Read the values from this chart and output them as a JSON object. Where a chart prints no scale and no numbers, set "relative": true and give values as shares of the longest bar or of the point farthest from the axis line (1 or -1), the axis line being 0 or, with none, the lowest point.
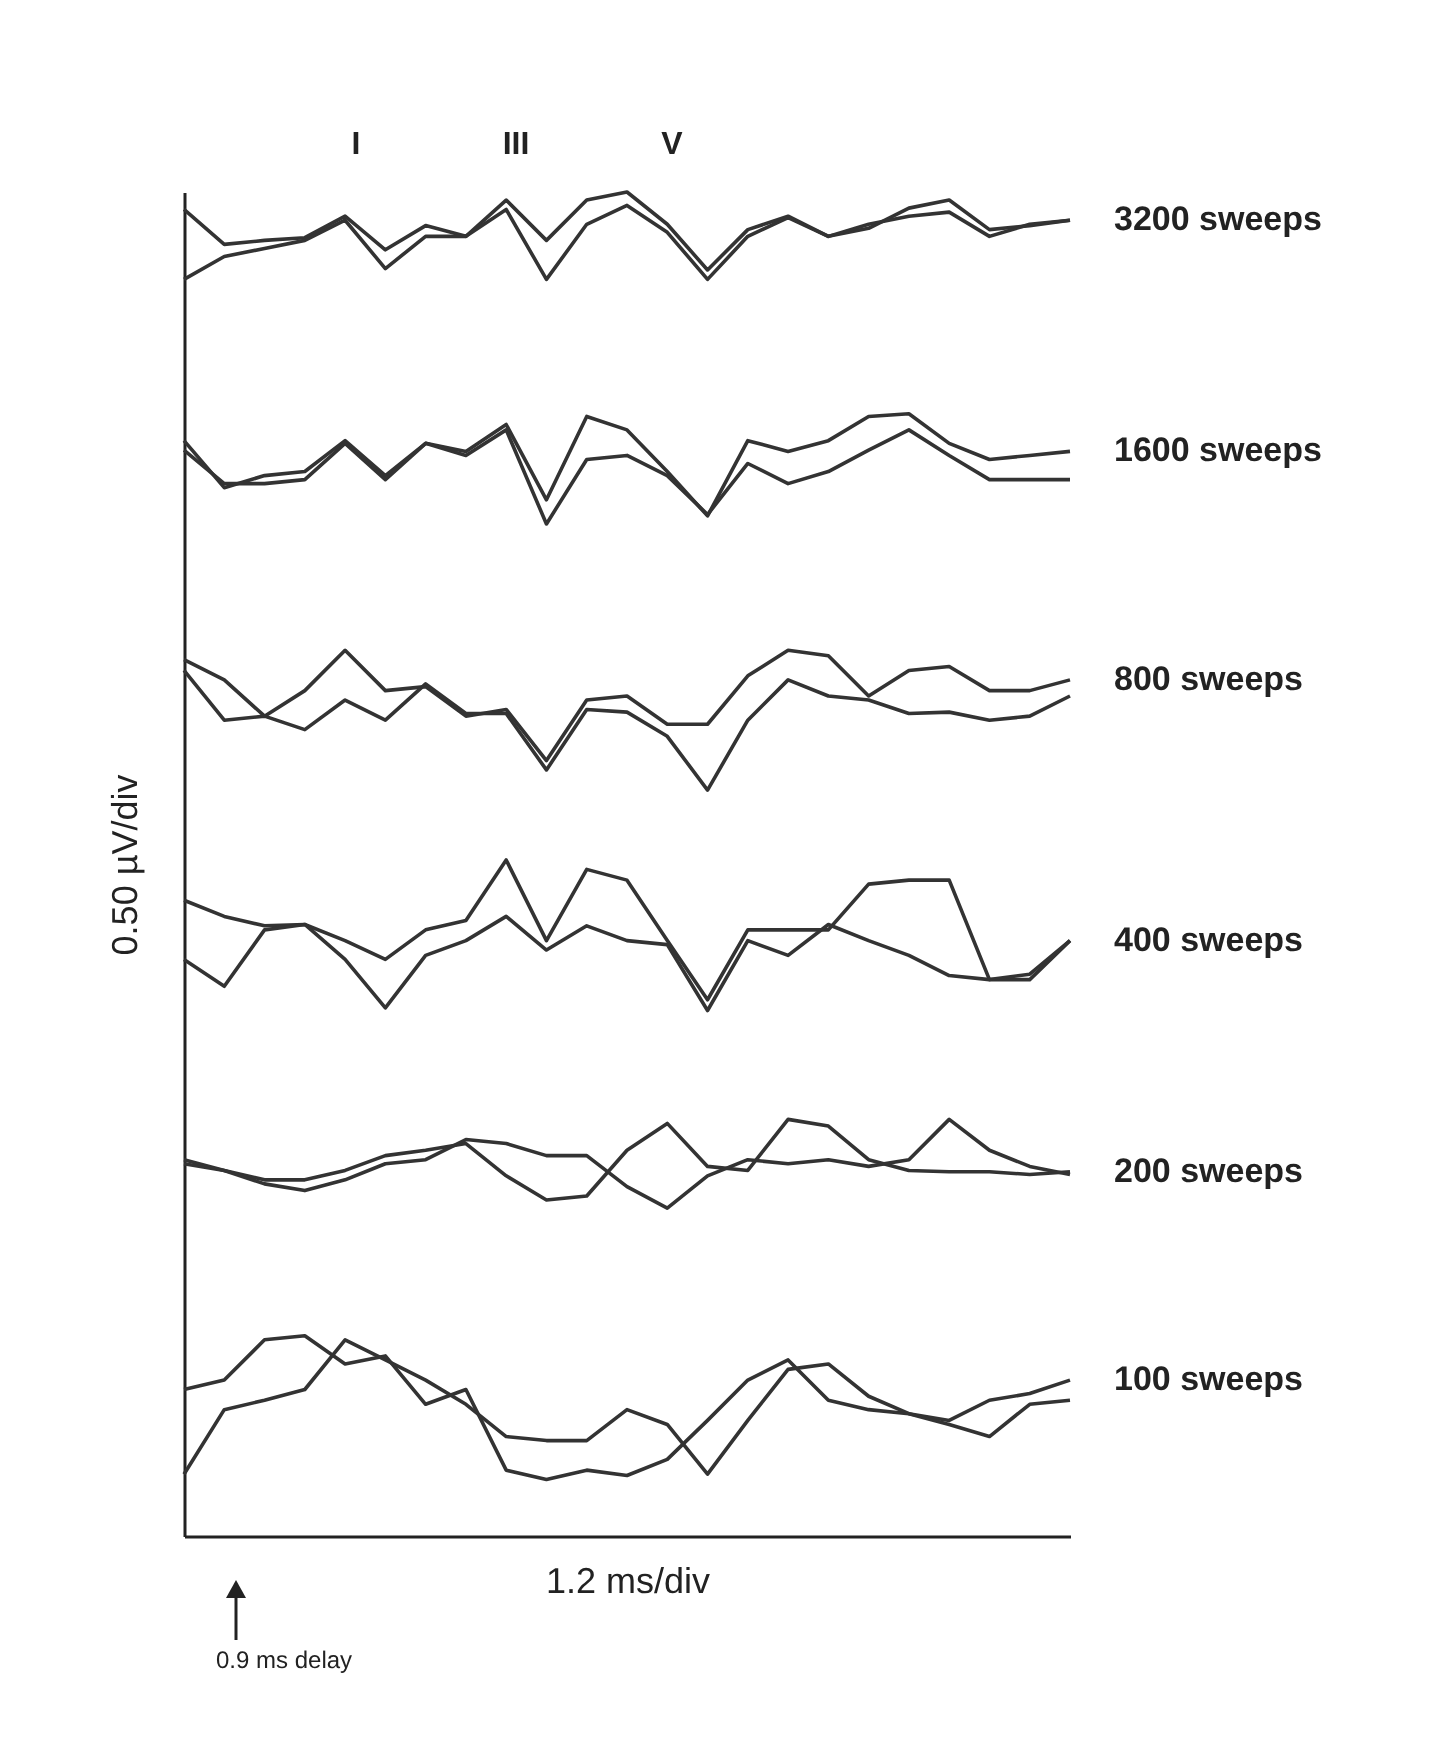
{
  "chart_data": {
    "type": "line",
    "relative": true,
    "xlabel": "1.2 ms/div",
    "ylabel": "0.50 µV/div",
    "annotations": [
      "I",
      "III",
      "V",
      "0.9 ms delay"
    ],
    "categories": [
      null,
      null,
      null,
      null,
      null,
      null,
      null,
      null,
      null,
      null,
      null,
      null,
      null,
      null,
      null,
      null,
      null,
      null,
      null,
      null,
      null,
      null,
      null
    ],
    "marker": "none",
    "line_style": "solid",
    "series": [
      {
        "name": "3200 sweeps",
        "color": "#333333",
        "values": [
          0.987,
          0.961,
          0.964,
          0.966,
          0.982,
          0.957,
          0.975,
          0.967,
          0.994,
          0.964,
          0.994,
          1.0,
          0.976,
          0.942,
          0.972,
          0.982,
          0.967,
          0.973,
          0.988,
          0.994,
          0.972,
          0.975,
          0.979
        ]
      },
      {
        "color": "#333333",
        "values": [
          0.935,
          0.952,
          0.958,
          0.964,
          0.979,
          0.943,
          0.967,
          0.967,
          0.987,
          0.935,
          0.976,
          0.99,
          0.97,
          0.935,
          0.967,
          0.981,
          0.967,
          0.976,
          0.982,
          0.985,
          0.967,
          0.976,
          0.979
        ]
      },
      {
        "name": "1600 sweeps",
        "color": "#333333",
        "values": [
          0.815,
          0.78,
          0.789,
          0.792,
          0.815,
          0.789,
          0.813,
          0.807,
          0.827,
          0.771,
          0.833,
          0.823,
          0.792,
          0.759,
          0.815,
          0.807,
          0.815,
          0.833,
          0.835,
          0.813,
          0.801,
          0.804,
          0.807
        ]
      },
      {
        "color": "#333333",
        "values": [
          0.808,
          0.783,
          0.783,
          0.786,
          0.813,
          0.786,
          0.813,
          0.804,
          0.823,
          0.753,
          0.801,
          0.804,
          0.789,
          0.76,
          0.798,
          0.783,
          0.792,
          0.808,
          0.823,
          0.804,
          0.786,
          0.786,
          0.786
        ]
      },
      {
        "name": "800 sweeps",
        "color": "#333333",
        "values": [
          0.652,
          0.637,
          0.61,
          0.629,
          0.659,
          0.629,
          0.632,
          0.61,
          0.615,
          0.577,
          0.622,
          0.625,
          0.604,
          0.604,
          0.64,
          0.659,
          0.655,
          0.625,
          0.644,
          0.647,
          0.629,
          0.629,
          0.637
        ]
      },
      {
        "color": "#333333",
        "values": [
          0.644,
          0.607,
          0.61,
          0.6,
          0.622,
          0.607,
          0.634,
          0.612,
          0.612,
          0.57,
          0.615,
          0.613,
          0.595,
          0.555,
          0.607,
          0.637,
          0.625,
          0.622,
          0.612,
          0.613,
          0.607,
          0.61,
          0.625
        ]
      },
      {
        "name": "400 sweeps",
        "color": "#333333",
        "values": [
          0.473,
          0.461,
          0.454,
          0.455,
          0.443,
          0.429,
          0.451,
          0.458,
          0.503,
          0.443,
          0.496,
          0.488,
          0.443,
          0.399,
          0.451,
          0.451,
          0.451,
          0.485,
          0.488,
          0.488,
          0.414,
          0.414,
          0.443
        ]
      },
      {
        "color": "#333333",
        "values": [
          0.429,
          0.409,
          0.451,
          0.455,
          0.429,
          0.393,
          0.432,
          0.443,
          0.461,
          0.436,
          0.454,
          0.443,
          0.44,
          0.391,
          0.443,
          0.432,
          0.455,
          0.443,
          0.432,
          0.417,
          0.414,
          0.418,
          0.443
        ]
      },
      {
        "name": "200 sweeps",
        "color": "#333333",
        "values": [
          0.28,
          0.272,
          0.265,
          0.265,
          0.272,
          0.283,
          0.287,
          0.292,
          0.268,
          0.25,
          0.253,
          0.287,
          0.307,
          0.275,
          0.272,
          0.31,
          0.305,
          0.28,
          0.272,
          0.271,
          0.271,
          0.269,
          0.271
        ]
      },
      {
        "color": "#333333",
        "values": [
          0.277,
          0.272,
          0.262,
          0.257,
          0.265,
          0.277,
          0.28,
          0.295,
          0.292,
          0.283,
          0.283,
          0.26,
          0.244,
          0.268,
          0.28,
          0.277,
          0.28,
          0.275,
          0.28,
          0.31,
          0.287,
          0.275,
          0.269
        ]
      },
      {
        "name": "100 sweeps",
        "color": "#333333",
        "values": [
          0.109,
          0.116,
          0.146,
          0.149,
          0.128,
          0.134,
          0.098,
          0.109,
          0.049,
          0.042,
          0.049,
          0.045,
          0.057,
          0.086,
          0.116,
          0.131,
          0.101,
          0.094,
          0.091,
          0.086,
          0.101,
          0.106,
          0.116
        ]
      },
      {
        "color": "#333333",
        "values": [
          0.046,
          0.094,
          0.101,
          0.109,
          0.146,
          0.131,
          0.116,
          0.098,
          0.074,
          0.071,
          0.071,
          0.094,
          0.083,
          0.046,
          0.086,
          0.124,
          0.128,
          0.104,
          0.091,
          0.083,
          0.074,
          0.098,
          0.101
        ]
      }
    ]
  }
}
